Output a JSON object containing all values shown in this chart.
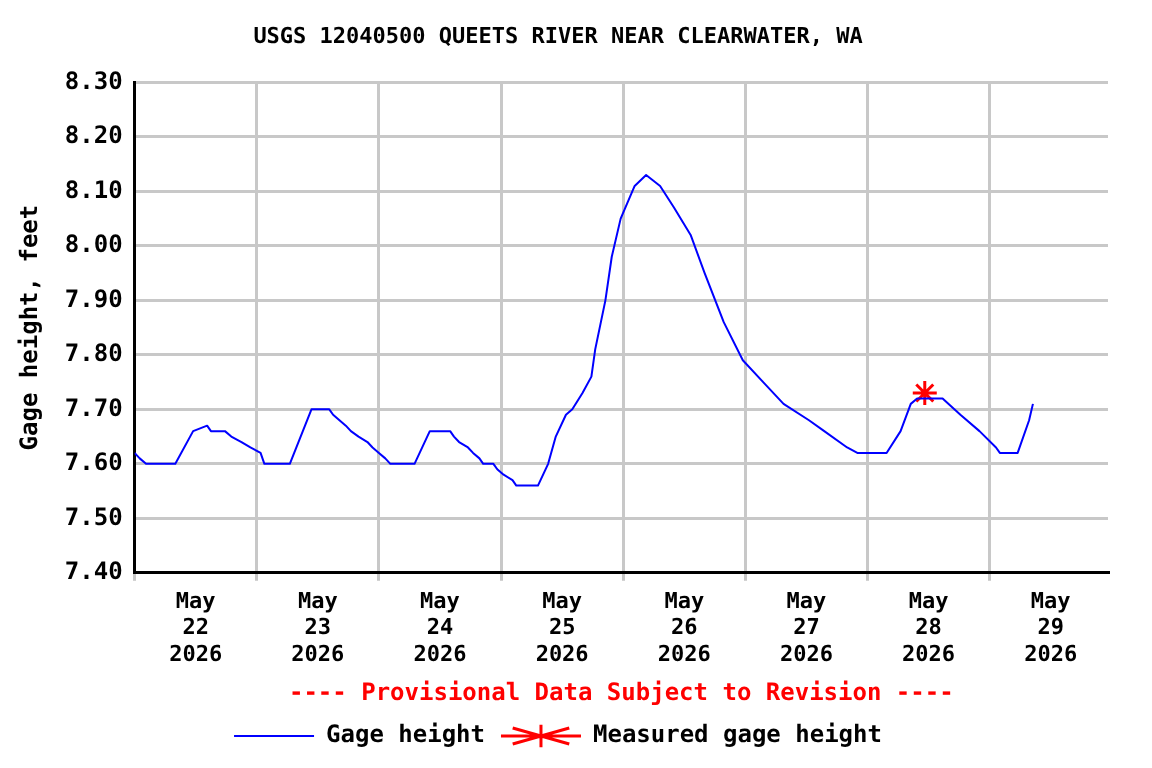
{
  "chart_data": {
    "type": "line",
    "title": "USGS 12040500 QUEETS RIVER NEAR CLEARWATER, WA",
    "ylabel": "Gage height, feet",
    "annotations": [
      "---- Provisional Data Subject to Revision ----"
    ],
    "xlim": [
      "2026-05-22T00:00",
      "2026-05-29T23:15"
    ],
    "xticks": [
      {
        "value": "2026-05-22T00:00",
        "label": null
      },
      {
        "value": "2026-05-22T12:00",
        "label": "May\n22\n2026"
      },
      {
        "value": "2026-05-23T00:00",
        "label": null
      },
      {
        "value": "2026-05-23T12:00",
        "label": "May\n23\n2026"
      },
      {
        "value": "2026-05-24T00:00",
        "label": null
      },
      {
        "value": "2026-05-24T12:00",
        "label": "May\n24\n2026"
      },
      {
        "value": "2026-05-25T00:00",
        "label": null
      },
      {
        "value": "2026-05-25T12:00",
        "label": "May\n25\n2026"
      },
      {
        "value": "2026-05-26T00:00",
        "label": null
      },
      {
        "value": "2026-05-26T12:00",
        "label": "May\n26\n2026"
      },
      {
        "value": "2026-05-27T00:00",
        "label": null
      },
      {
        "value": "2026-05-27T12:00",
        "label": "May\n27\n2026"
      },
      {
        "value": "2026-05-28T00:00",
        "label": null
      },
      {
        "value": "2026-05-28T12:00",
        "label": "May\n28\n2026"
      },
      {
        "value": "2026-05-29T00:00",
        "label": null
      },
      {
        "value": "2026-05-29T12:00",
        "label": "May\n29\n2026"
      }
    ],
    "ylim": [
      7.4,
      8.3
    ],
    "yticks": [
      {
        "value": 7.4,
        "label": "7.40"
      },
      {
        "value": 7.5,
        "label": "7.50"
      },
      {
        "value": 7.6,
        "label": "7.60"
      },
      {
        "value": 7.7,
        "label": "7.70"
      },
      {
        "value": 7.8,
        "label": "7.80"
      },
      {
        "value": 7.9,
        "label": "7.90"
      },
      {
        "value": 8.0,
        "label": "8.00"
      },
      {
        "value": 8.1,
        "label": "8.10"
      },
      {
        "value": 8.2,
        "label": "8.20"
      },
      {
        "value": 8.3,
        "label": "8.30"
      }
    ],
    "grid": true,
    "legend": "bottom",
    "series": [
      {
        "name": "Gage height",
        "type": "line",
        "color": "#0000ff",
        "marker": "none",
        "line_style": "solid",
        "x": [
          "2026-05-22T00:00",
          "2026-05-22T01:00",
          "2026-05-22T02:15",
          "2026-05-22T08:00",
          "2026-05-22T11:30",
          "2026-05-22T14:15",
          "2026-05-22T15:00",
          "2026-05-22T17:45",
          "2026-05-22T19:00",
          "2026-05-22T21:00",
          "2026-05-22T22:45",
          "2026-05-23T00:45",
          "2026-05-23T01:30",
          "2026-05-23T06:30",
          "2026-05-23T10:45",
          "2026-05-23T14:15",
          "2026-05-23T15:00",
          "2026-05-23T16:15",
          "2026-05-23T17:30",
          "2026-05-23T18:30",
          "2026-05-23T20:00",
          "2026-05-23T21:45",
          "2026-05-23T22:45",
          "2026-05-24T00:00",
          "2026-05-24T01:15",
          "2026-05-24T02:15",
          "2026-05-24T07:00",
          "2026-05-24T10:00",
          "2026-05-24T14:00",
          "2026-05-24T14:45",
          "2026-05-24T15:45",
          "2026-05-24T17:30",
          "2026-05-24T18:30",
          "2026-05-24T19:45",
          "2026-05-24T20:30",
          "2026-05-24T22:30",
          "2026-05-24T23:15",
          "2026-05-25T00:30",
          "2026-05-25T02:15",
          "2026-05-25T03:00",
          "2026-05-25T07:15",
          "2026-05-25T09:15",
          "2026-05-25T10:45",
          "2026-05-25T12:45",
          "2026-05-25T14:00",
          "2026-05-25T16:00",
          "2026-05-25T17:45",
          "2026-05-25T18:30",
          "2026-05-25T20:30",
          "2026-05-25T21:45",
          "2026-05-25T23:30",
          "2026-05-26T02:15",
          "2026-05-26T04:30",
          "2026-05-26T07:15",
          "2026-05-26T10:00",
          "2026-05-26T13:15",
          "2026-05-26T16:00",
          "2026-05-26T19:45",
          "2026-05-26T23:30",
          "2026-05-27T03:30",
          "2026-05-27T07:30",
          "2026-05-27T12:30",
          "2026-05-27T15:30",
          "2026-05-27T20:00",
          "2026-05-27T22:00",
          "2026-05-28T03:45",
          "2026-05-28T06:30",
          "2026-05-28T08:30",
          "2026-05-28T09:45",
          "2026-05-28T14:45",
          "2026-05-28T18:15",
          "2026-05-28T22:00",
          "2026-05-29T01:15",
          "2026-05-29T02:00",
          "2026-05-29T05:30",
          "2026-05-29T07:45",
          "2026-05-29T08:30"
        ],
        "values": [
          7.62,
          7.61,
          7.6,
          7.6,
          7.66,
          7.67,
          7.66,
          7.66,
          7.65,
          7.64,
          7.63,
          7.62,
          7.6,
          7.6,
          7.7,
          7.7,
          7.69,
          7.68,
          7.67,
          7.66,
          7.65,
          7.64,
          7.63,
          7.62,
          7.61,
          7.6,
          7.6,
          7.66,
          7.66,
          7.65,
          7.64,
          7.63,
          7.62,
          7.61,
          7.6,
          7.6,
          7.59,
          7.58,
          7.57,
          7.56,
          7.56,
          7.6,
          7.65,
          7.69,
          7.7,
          7.73,
          7.76,
          7.81,
          7.9,
          7.98,
          8.05,
          8.11,
          8.13,
          8.11,
          8.07,
          8.02,
          7.95,
          7.86,
          7.79,
          7.75,
          7.71,
          7.68,
          7.66,
          7.63,
          7.62,
          7.62,
          7.66,
          7.71,
          7.72,
          7.72,
          7.69,
          7.66,
          7.63,
          7.62,
          7.62,
          7.68,
          7.71
        ]
      },
      {
        "name": "Measured gage height",
        "type": "scatter",
        "color": "#ff0000",
        "marker": "cross",
        "x": [
          "2026-05-28T11:15"
        ],
        "values": [
          7.73
        ]
      }
    ]
  }
}
